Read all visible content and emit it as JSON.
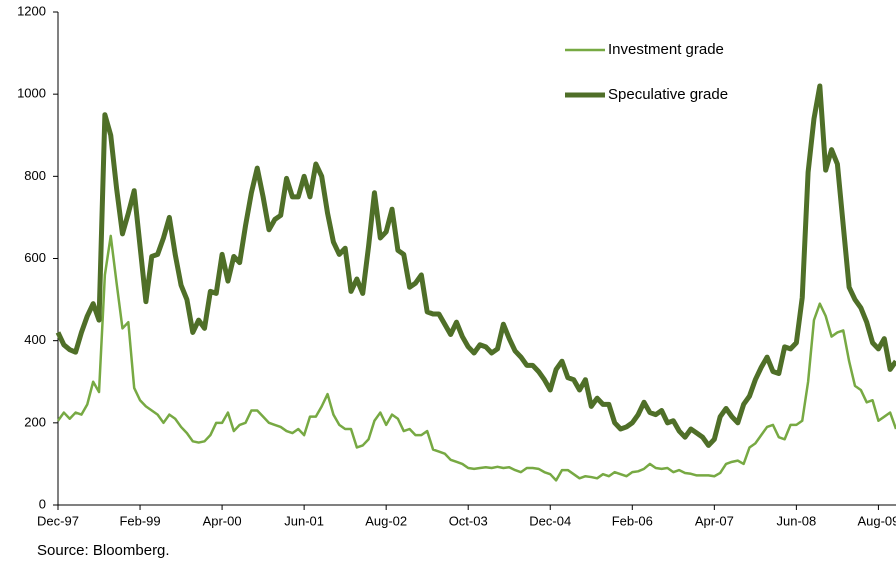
{
  "chart_data": {
    "type": "line",
    "categories": [
      "Dec-97",
      null,
      null,
      null,
      null,
      null,
      null,
      null,
      null,
      null,
      null,
      null,
      null,
      null,
      "Feb-99",
      null,
      null,
      null,
      null,
      null,
      null,
      null,
      null,
      null,
      null,
      null,
      null,
      null,
      "Apr-00",
      null,
      null,
      null,
      null,
      null,
      null,
      null,
      null,
      null,
      null,
      null,
      null,
      null,
      "Jun-01",
      null,
      null,
      null,
      null,
      null,
      null,
      null,
      null,
      null,
      null,
      null,
      null,
      null,
      "Aug-02",
      null,
      null,
      null,
      null,
      null,
      null,
      null,
      null,
      null,
      null,
      null,
      null,
      null,
      "Oct-03",
      null,
      null,
      null,
      null,
      null,
      null,
      null,
      null,
      null,
      null,
      null,
      null,
      null,
      "Dec-04",
      null,
      null,
      null,
      null,
      null,
      null,
      null,
      null,
      null,
      null,
      null,
      null,
      null,
      "Feb-06",
      null,
      null,
      null,
      null,
      null,
      null,
      null,
      null,
      null,
      null,
      null,
      null,
      null,
      "Apr-07",
      null,
      null,
      null,
      null,
      null,
      null,
      null,
      null,
      null,
      null,
      null,
      null,
      null,
      "Jun-08",
      null,
      null,
      null,
      null,
      null,
      null,
      null,
      null,
      null,
      null,
      null,
      null,
      null,
      "Aug-09",
      null,
      null,
      null
    ],
    "series": [
      {
        "name": "Investment grade",
        "color": "#77a943",
        "width": 2.5,
        "values": [
          205,
          225,
          210,
          225,
          220,
          245,
          300,
          275,
          560,
          655,
          540,
          430,
          445,
          285,
          255,
          240,
          230,
          220,
          200,
          220,
          210,
          190,
          175,
          155,
          152,
          155,
          170,
          200,
          200,
          225,
          180,
          195,
          200,
          230,
          230,
          215,
          200,
          195,
          190,
          180,
          175,
          185,
          170,
          215,
          215,
          240,
          270,
          220,
          195,
          185,
          185,
          140,
          145,
          160,
          205,
          225,
          195,
          220,
          210,
          180,
          185,
          170,
          170,
          180,
          135,
          130,
          125,
          110,
          105,
          100,
          90,
          88,
          90,
          92,
          90,
          93,
          90,
          92,
          85,
          80,
          90,
          90,
          88,
          80,
          75,
          60,
          85,
          85,
          75,
          65,
          70,
          68,
          65,
          75,
          70,
          80,
          75,
          70,
          80,
          82,
          88,
          100,
          90,
          88,
          90,
          80,
          85,
          78,
          76,
          72,
          72,
          72,
          70,
          78,
          100,
          105,
          108,
          100,
          140,
          150,
          170,
          190,
          195,
          165,
          160,
          195,
          195,
          205,
          300,
          450,
          490,
          460,
          410,
          420,
          425,
          350,
          290,
          280,
          250,
          255,
          205,
          215,
          225,
          185
        ]
      },
      {
        "name": "Speculative grade",
        "color": "#4f6f28",
        "width": 5,
        "values": [
          420,
          390,
          378,
          372,
          420,
          460,
          490,
          450,
          950,
          900,
          770,
          660,
          710,
          765,
          630,
          495,
          605,
          610,
          650,
          700,
          610,
          535,
          500,
          420,
          450,
          430,
          520,
          515,
          610,
          545,
          605,
          590,
          680,
          760,
          820,
          750,
          670,
          695,
          705,
          795,
          750,
          750,
          800,
          750,
          830,
          800,
          710,
          640,
          610,
          625,
          520,
          550,
          515,
          630,
          760,
          650,
          665,
          720,
          620,
          610,
          530,
          540,
          560,
          470,
          465,
          465,
          440,
          415,
          445,
          410,
          385,
          370,
          390,
          385,
          370,
          380,
          440,
          405,
          375,
          360,
          340,
          340,
          325,
          305,
          280,
          330,
          350,
          310,
          305,
          280,
          305,
          240,
          260,
          245,
          245,
          200,
          185,
          190,
          200,
          220,
          250,
          225,
          220,
          230,
          200,
          205,
          180,
          165,
          185,
          175,
          165,
          145,
          160,
          215,
          235,
          215,
          200,
          245,
          265,
          305,
          335,
          360,
          325,
          320,
          385,
          380,
          395,
          505,
          810,
          940,
          1020,
          815,
          865,
          830,
          680,
          530,
          500,
          480,
          445,
          395,
          380,
          405,
          330,
          350
        ]
      }
    ],
    "ylim": [
      0,
      1200
    ],
    "yticks": [
      0,
      200,
      400,
      600,
      800,
      1000,
      1200
    ],
    "source": "Source: Bloomberg."
  }
}
